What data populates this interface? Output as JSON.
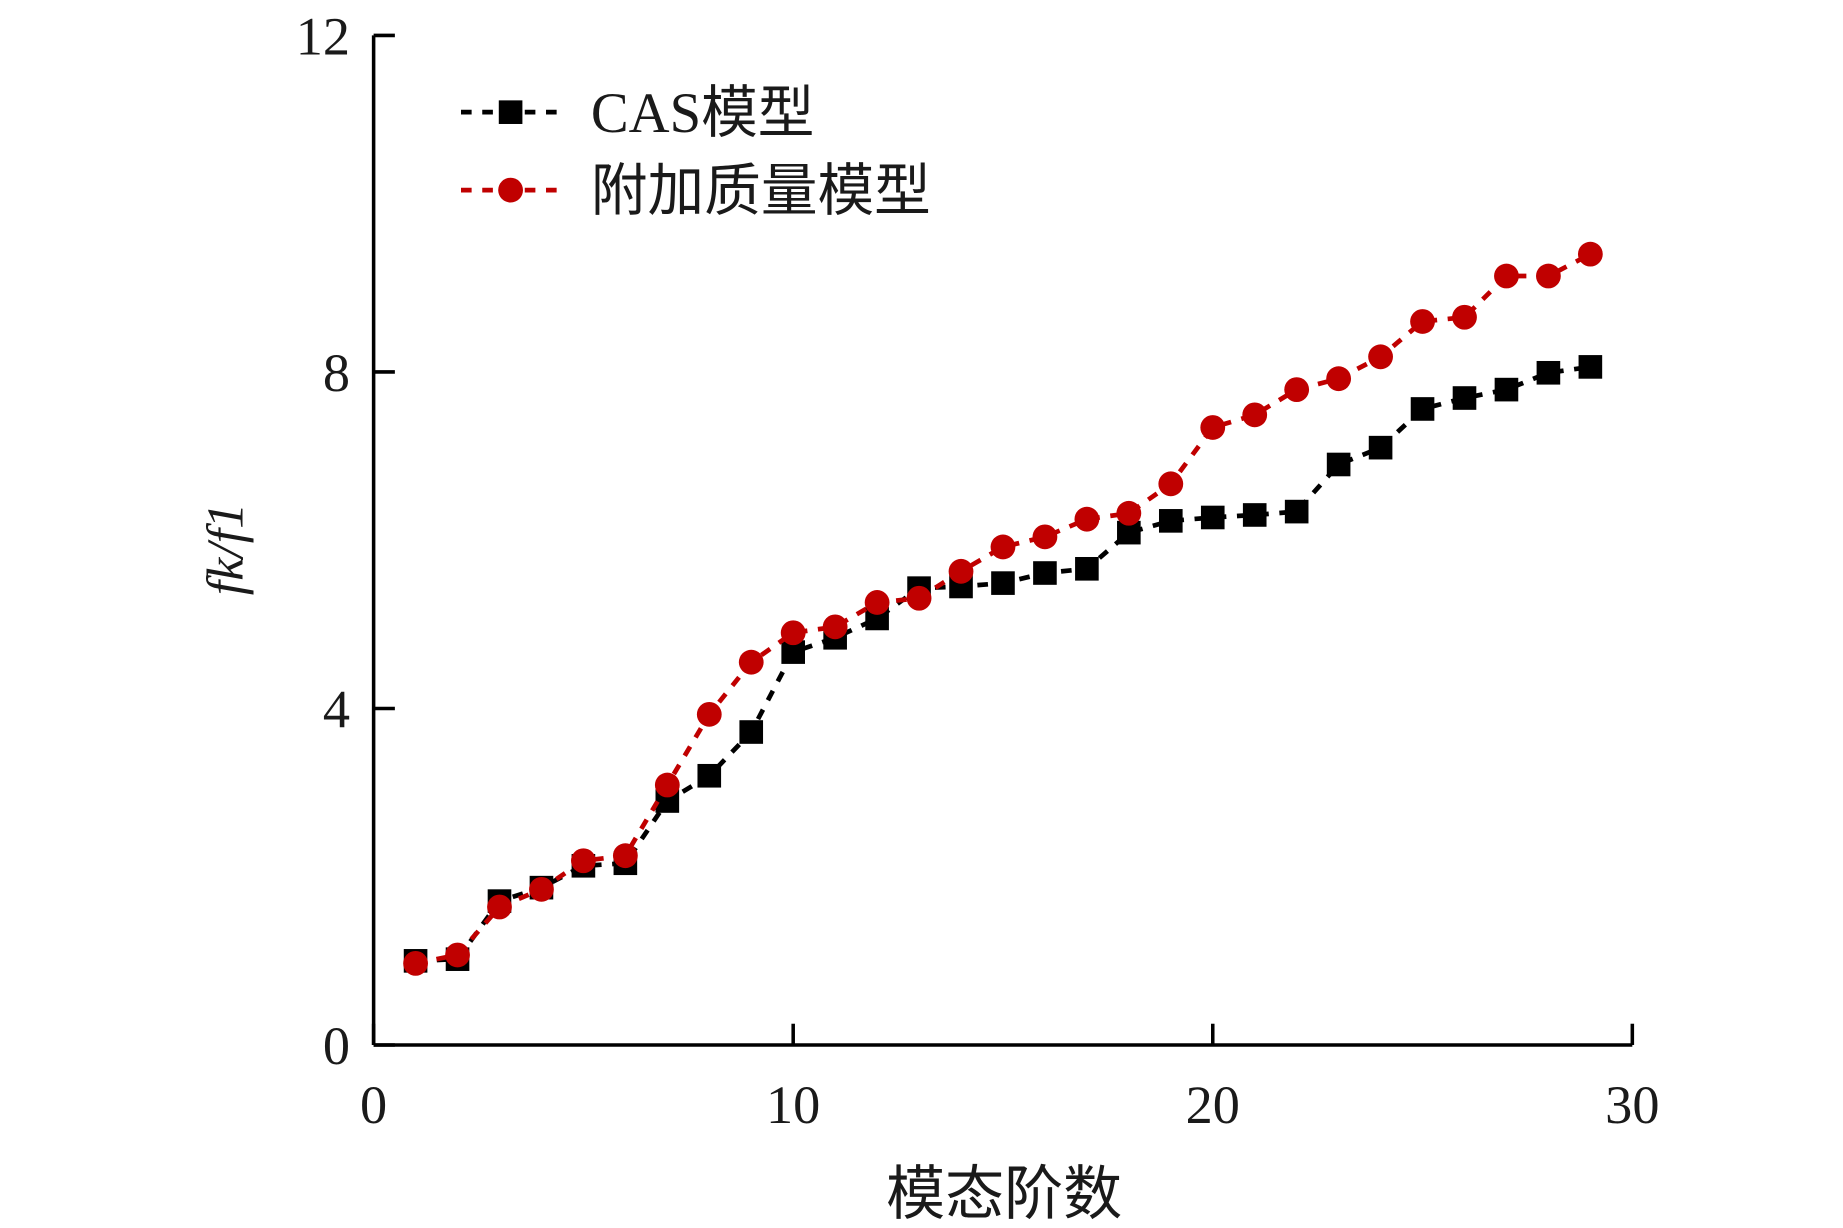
{
  "chart_data": {
    "type": "line",
    "title": "",
    "xlabel": "模态阶数",
    "ylabel": "fk/f1",
    "xlim": [
      0,
      30
    ],
    "ylim": [
      0,
      12
    ],
    "xticks": [
      0,
      10,
      20,
      30
    ],
    "yticks": [
      0,
      4,
      8,
      12
    ],
    "grid": false,
    "legend_position": "top-left",
    "x": [
      1,
      2,
      3,
      4,
      5,
      6,
      7,
      8,
      9,
      10,
      11,
      12,
      13,
      14,
      15,
      16,
      17,
      18,
      19,
      20,
      21,
      22,
      23,
      24,
      25,
      26,
      27,
      28,
      29
    ],
    "series": [
      {
        "name": "CAS模型",
        "color": "#000000",
        "marker": "square",
        "values": [
          1.0,
          1.02,
          1.71,
          1.87,
          2.13,
          2.16,
          2.9,
          3.2,
          3.72,
          4.67,
          4.84,
          5.07,
          5.43,
          5.45,
          5.49,
          5.61,
          5.66,
          6.09,
          6.23,
          6.27,
          6.3,
          6.34,
          6.9,
          7.1,
          7.56,
          7.69,
          7.79,
          7.99,
          8.06
        ]
      },
      {
        "name": "附加质量模型",
        "color": "#c00000",
        "marker": "circle",
        "values": [
          0.97,
          1.07,
          1.64,
          1.85,
          2.19,
          2.25,
          3.09,
          3.93,
          4.55,
          4.9,
          4.97,
          5.26,
          5.31,
          5.63,
          5.92,
          6.04,
          6.25,
          6.32,
          6.67,
          7.34,
          7.49,
          7.79,
          7.92,
          8.18,
          8.6,
          8.65,
          9.14,
          9.14,
          9.4
        ]
      }
    ]
  }
}
